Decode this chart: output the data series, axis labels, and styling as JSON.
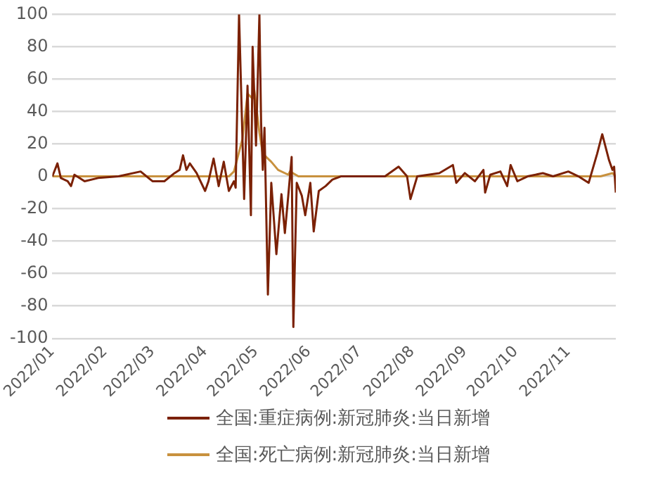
{
  "chart_data": {
    "type": "line",
    "xlim": [
      "2022-01-01",
      "2022-11-29"
    ],
    "xticks": [
      {
        "value": "2022-01-01",
        "label": "2022/01"
      },
      {
        "value": "2022-02-01",
        "label": "2022/02"
      },
      {
        "value": "2022-03-01",
        "label": "2022/03"
      },
      {
        "value": "2022-04-01",
        "label": "2022/04"
      },
      {
        "value": "2022-05-01",
        "label": "2022/05"
      },
      {
        "value": "2022-06-01",
        "label": "2022/06"
      },
      {
        "value": "2022-07-01",
        "label": "2022/07"
      },
      {
        "value": "2022-08-01",
        "label": "2022/08"
      },
      {
        "value": "2022-09-01",
        "label": "2022/09"
      },
      {
        "value": "2022-10-01",
        "label": "2022/10"
      },
      {
        "value": "2022-11-01",
        "label": "2022/11"
      }
    ],
    "ylim": [
      -100,
      100
    ],
    "yticks": [
      -100,
      -80,
      -60,
      -40,
      -20,
      0,
      20,
      40,
      60,
      80,
      100
    ],
    "grid": "y",
    "legend": "bottom",
    "marker": "none",
    "line_style": "solid",
    "series": [
      {
        "name": "全国:重症病例:新冠肺炎:当日新增",
        "color": "#7b2105",
        "x": [
          "2022-01-01",
          "2022-01-04",
          "2022-01-06",
          "2022-01-10",
          "2022-01-12",
          "2022-01-14",
          "2022-01-20",
          "2022-01-28",
          "2022-02-09",
          "2022-02-22",
          "2022-03-01",
          "2022-03-08",
          "2022-03-14",
          "2022-03-17",
          "2022-03-19",
          "2022-03-21",
          "2022-03-23",
          "2022-03-27",
          "2022-04-01",
          "2022-04-03",
          "2022-04-06",
          "2022-04-09",
          "2022-04-12",
          "2022-04-15",
          "2022-04-18",
          "2022-04-19",
          "2022-04-21",
          "2022-04-24",
          "2022-04-26",
          "2022-04-28",
          "2022-04-29",
          "2022-05-01",
          "2022-05-03",
          "2022-05-04",
          "2022-05-05",
          "2022-05-06",
          "2022-05-08",
          "2022-05-10",
          "2022-05-13",
          "2022-05-16",
          "2022-05-18",
          "2022-05-20",
          "2022-05-22",
          "2022-05-23",
          "2022-05-25",
          "2022-05-28",
          "2022-05-30",
          "2022-06-02",
          "2022-06-04",
          "2022-06-07",
          "2022-06-11",
          "2022-06-15",
          "2022-06-20",
          "2022-07-07",
          "2022-07-16",
          "2022-07-24",
          "2022-07-29",
          "2022-07-31",
          "2022-08-04",
          "2022-08-17",
          "2022-08-25",
          "2022-08-27",
          "2022-09-01",
          "2022-09-07",
          "2022-09-12",
          "2022-09-13",
          "2022-09-16",
          "2022-09-22",
          "2022-09-26",
          "2022-09-28",
          "2022-10-02",
          "2022-10-08",
          "2022-10-17",
          "2022-10-23",
          "2022-11-01",
          "2022-11-07",
          "2022-11-13",
          "2022-11-18",
          "2022-11-21",
          "2022-11-25",
          "2022-11-27",
          "2022-11-28",
          "2022-11-29"
        ],
        "values": [
          0,
          8,
          -1,
          -3,
          -6,
          1,
          -3,
          -1,
          0,
          3,
          -3,
          -3,
          2,
          4,
          13,
          4,
          8,
          2,
          -9,
          -3,
          11,
          -6,
          9,
          -9,
          -3,
          -7,
          100,
          -14,
          56,
          -24,
          80,
          19,
          100,
          33,
          4,
          30,
          -73,
          -4,
          -48,
          -11,
          -35,
          -12,
          12,
          -93,
          -4,
          -12,
          -24,
          -4,
          -34,
          -9,
          -6,
          -2,
          0,
          0,
          0,
          6,
          0,
          -14,
          0,
          2,
          7,
          -4,
          2,
          -3,
          4,
          -10,
          1,
          3,
          -6,
          7,
          -3,
          0,
          2,
          0,
          3,
          0,
          -4,
          14,
          26,
          10,
          4,
          6,
          -10
        ]
      },
      {
        "name": "全国:死亡病例:新冠肺炎:当日新增",
        "color": "#c8913e",
        "x": [
          "2022-01-01",
          "2022-04-15",
          "2022-04-18",
          "2022-04-23",
          "2022-04-26",
          "2022-04-29",
          "2022-04-30",
          "2022-05-03",
          "2022-05-05",
          "2022-05-10",
          "2022-05-14",
          "2022-05-20",
          "2022-05-21",
          "2022-05-26",
          "2022-11-20",
          "2022-11-27",
          "2022-11-29"
        ],
        "values": [
          0,
          0,
          3,
          23,
          51,
          48,
          53,
          27,
          14,
          9,
          4,
          1,
          3,
          0,
          0,
          2,
          0
        ]
      }
    ]
  }
}
